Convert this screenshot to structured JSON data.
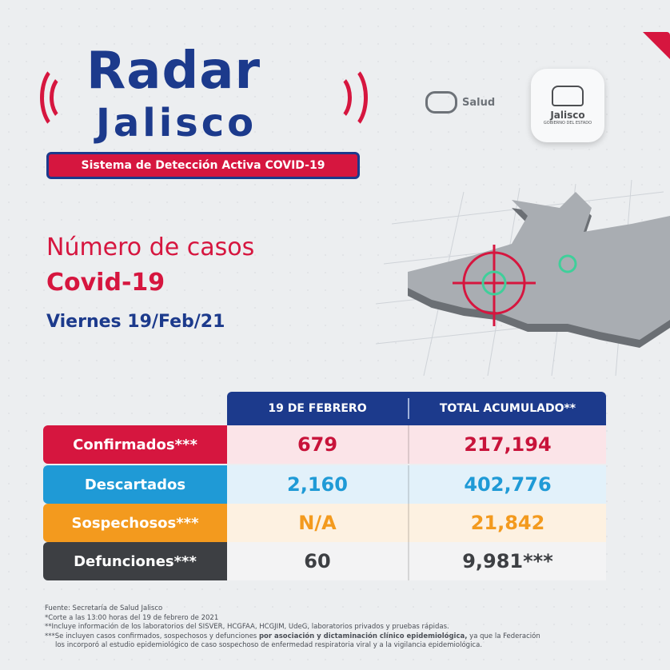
{
  "logo": {
    "title_word": "Radar",
    "region_word": "Jalisco",
    "subtitle": "Sistema de Detección Activa COVID-19"
  },
  "partners": {
    "salud_label": "Salud",
    "jalisco_seal_name": "Jalisco",
    "jalisco_seal_sub": "GOBIERNO DEL ESTADO"
  },
  "heading": {
    "line1": "Número de casos",
    "line2": "Covid-19",
    "date": "Viernes 19/Feb/21"
  },
  "table": {
    "columns": [
      "19 DE FEBRERO",
      "TOTAL ACUMULADO**"
    ],
    "rows": [
      {
        "label": "Confirmados***",
        "day": "679",
        "total": "217,194",
        "color": "#d6163f",
        "bg": "#fbe4e8",
        "value_color": "#c8133a"
      },
      {
        "label": "Descartados",
        "day": "2,160",
        "total": "402,776",
        "color": "#1f9ad6",
        "bg": "#e2f1fa",
        "value_color": "#1f9ad6"
      },
      {
        "label": "Sospechosos***",
        "day": "N/A",
        "total": "21,842",
        "color": "#f39a1e",
        "bg": "#fdf1e1",
        "value_color": "#f39a1e"
      },
      {
        "label": "Defunciones***",
        "day": "60",
        "total": "9,981***",
        "color": "#3d3f43",
        "bg": "#f3f3f4",
        "value_color": "#3d3f43"
      }
    ]
  },
  "footer": {
    "source": "Fuente: Secretaría de Salud Jalisco",
    "note1": "*Corte a las 13:00 horas del 19 de febrero de 2021",
    "note2": "**Incluye información de los laboratorios del SISVER, HCGFAA, HCGJIM, UdeG, laboratorios privados y pruebas rápidas.",
    "note3_pre": "***Se incluyen casos confirmados, sospechosos y defunciones ",
    "note3_bold": "por asociación y dictaminación clínico epidemiológica,",
    "note3_post": " ya que la Federación",
    "note4": "los incorporó al estudio epidemiológico de caso sospechoso de enfermedad respiratoria viral y a la vigilancia epidemiológica."
  },
  "colors": {
    "brand_blue": "#1c3a8c",
    "brand_red": "#d6163f",
    "virus_green": "#3fcf9a"
  }
}
